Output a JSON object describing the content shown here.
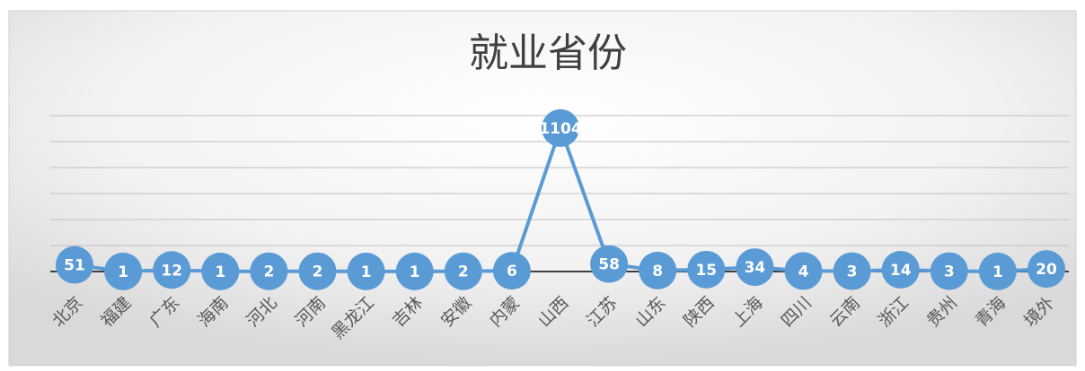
{
  "chart_data": {
    "type": "line",
    "title": "就业省份",
    "categories": [
      "北京",
      "福建",
      "广东",
      "海南",
      "河北",
      "河南",
      "黑龙江",
      "吉林",
      "安徽",
      "内蒙",
      "山西",
      "江苏",
      "山东",
      "陕西",
      "上海",
      "四川",
      "云南",
      "浙江",
      "贵州",
      "青海",
      "境外"
    ],
    "values": [
      51,
      1,
      12,
      1,
      2,
      2,
      1,
      1,
      2,
      6,
      1104,
      58,
      8,
      15,
      34,
      4,
      3,
      14,
      3,
      1,
      20
    ],
    "color": "#5b9bd5",
    "ylim": [
      0,
      1200
    ],
    "yticks": [
      0,
      200,
      400,
      600,
      800,
      1000,
      1200
    ],
    "grid": true
  }
}
